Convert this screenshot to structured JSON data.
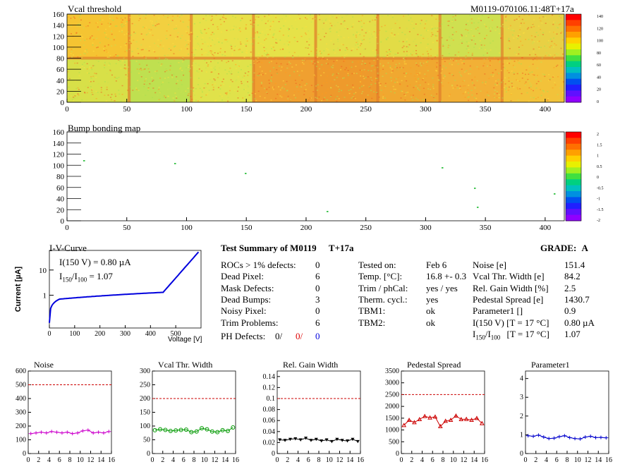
{
  "module_id": "M0119-070106.11:48T+17a",
  "vcal_map": {
    "title": "Vcal threshold",
    "x_ticks": [
      0,
      50,
      100,
      150,
      200,
      250,
      300,
      350,
      400
    ],
    "y_ticks": [
      0,
      20,
      40,
      60,
      80,
      100,
      120,
      140,
      160
    ],
    "color_scale_ticks": [
      0,
      20,
      40,
      60,
      80,
      100,
      120,
      140
    ],
    "xlim": [
      0,
      416
    ],
    "ylim": [
      0,
      160
    ]
  },
  "bump_map": {
    "title": "Bump bonding map",
    "x_ticks": [
      0,
      50,
      100,
      150,
      200,
      250,
      300,
      350,
      400
    ],
    "y_ticks": [
      0,
      20,
      40,
      60,
      80,
      100,
      120,
      140,
      160
    ],
    "color_scale_ticks": [
      "2",
      "1.5",
      "1",
      "0.5",
      "0",
      "-0.5",
      "-1",
      "-1.5",
      "-2"
    ]
  },
  "iv_curve": {
    "title": "I-V-Curve",
    "ylabel": "Current [µA]",
    "xlabel": "Voltage [V]",
    "x_ticks": [
      0,
      100,
      200,
      300,
      400,
      500
    ],
    "y_ticks": [
      "1",
      "10"
    ],
    "annotation_1": "I(150 V) = 0.80 µA",
    "annotation_2_main": "I",
    "annotation_2_sub1": "150",
    "annotation_2_mid": "/I",
    "annotation_2_sub2": "100",
    "annotation_2_value": "=  1.07"
  },
  "summary": {
    "title": "Test Summary of M0119",
    "tag": "T+17a",
    "grade_label": "GRADE:",
    "grade_value": "A",
    "defects": [
      {
        "label": "ROCs > 1% defects:",
        "value": "0"
      },
      {
        "label": "Dead Pixel:",
        "value": "6"
      },
      {
        "label": "Mask Defects:",
        "value": "0"
      },
      {
        "label": "Dead Bumps:",
        "value": "3"
      },
      {
        "label": "Noisy Pixel:",
        "value": "0"
      },
      {
        "label": "Trim Problems:",
        "value": "6"
      }
    ],
    "ph_defects_label": "PH Defects:",
    "ph_defects_values": [
      "0/",
      "0/",
      "0"
    ],
    "tests": [
      {
        "label": "Tested on:",
        "value": "Feb 6"
      },
      {
        "label": "Temp. [°C]:",
        "value": "16.8 +- 0.3"
      },
      {
        "label": "Trim / phCal:",
        "value": "yes / yes"
      },
      {
        "label": "Therm. cycl.:",
        "value": "yes"
      },
      {
        "label": "TBM1:",
        "value": "ok"
      },
      {
        "label": "TBM2:",
        "value": "ok"
      }
    ],
    "params": [
      {
        "label": "Noise [e]",
        "value": "151.4"
      },
      {
        "label": "Vcal Thr. Width [e]",
        "value": "84.2"
      },
      {
        "label": "Rel. Gain Width [%]",
        "value": "2.5"
      },
      {
        "label": "Pedestal Spread [e]",
        "value": "1430.7"
      },
      {
        "label": "Parameter1 []",
        "value": "0.9"
      },
      {
        "label": "I(150 V) [T = 17 °C]",
        "value": "0.80 µA"
      }
    ],
    "ratio_label_main": "I",
    "ratio_label_sub1": "150",
    "ratio_label_mid": "/I",
    "ratio_label_sub2": "100",
    "ratio_label_rest": "[T = 17 °C]",
    "ratio_value": "1.07"
  },
  "chart_data": [
    {
      "type": "line",
      "title": "Noise",
      "color": "#cc00cc",
      "marker": "plus",
      "x": [
        0,
        1,
        2,
        3,
        4,
        5,
        6,
        7,
        8,
        9,
        10,
        11,
        12,
        13,
        14,
        15
      ],
      "y": [
        145,
        150,
        155,
        150,
        160,
        155,
        150,
        155,
        145,
        150,
        165,
        170,
        150,
        155,
        150,
        160
      ],
      "ylim": [
        0,
        600
      ],
      "y_ticks": [
        0,
        100,
        200,
        300,
        400,
        500,
        600
      ],
      "reference": 500,
      "x_ticks": [
        0,
        2,
        4,
        6,
        8,
        10,
        12,
        14,
        16
      ]
    },
    {
      "type": "line",
      "title": "Vcal Thr. Width",
      "color": "#009900",
      "marker": "circle",
      "x": [
        0,
        1,
        2,
        3,
        4,
        5,
        6,
        7,
        8,
        9,
        10,
        11,
        12,
        13,
        14,
        15
      ],
      "y": [
        85,
        88,
        86,
        82,
        84,
        86,
        87,
        78,
        80,
        92,
        88,
        80,
        78,
        85,
        82,
        95
      ],
      "ylim": [
        0,
        300
      ],
      "y_ticks": [
        0,
        50,
        100,
        150,
        200,
        250,
        300
      ],
      "reference": 200,
      "x_ticks": [
        0,
        2,
        4,
        6,
        8,
        10,
        12,
        14,
        16
      ]
    },
    {
      "type": "line",
      "title": "Rel. Gain Width",
      "color": "#000000",
      "marker": "triangle-down",
      "x": [
        0,
        1,
        2,
        3,
        4,
        5,
        6,
        7,
        8,
        9,
        10,
        11,
        12,
        13,
        14,
        15
      ],
      "y": [
        0.025,
        0.024,
        0.026,
        0.027,
        0.025,
        0.028,
        0.024,
        0.026,
        0.023,
        0.025,
        0.022,
        0.026,
        0.024,
        0.023,
        0.026,
        0.022
      ],
      "ylim": [
        0,
        0.15
      ],
      "y_ticks": [
        0,
        0.02,
        0.04,
        0.06,
        0.08,
        0.1,
        0.12,
        0.14
      ],
      "reference": 0.1,
      "x_ticks": [
        0,
        2,
        4,
        6,
        8,
        10,
        12,
        14,
        16
      ]
    },
    {
      "type": "line",
      "title": "Pedestal Spread",
      "color": "#cc0000",
      "marker": "triangle-up",
      "x": [
        0,
        1,
        2,
        3,
        4,
        5,
        6,
        7,
        8,
        9,
        10,
        11,
        12,
        13,
        14,
        15
      ],
      "y": [
        1200,
        1420,
        1320,
        1450,
        1580,
        1520,
        1560,
        1150,
        1380,
        1420,
        1600,
        1450,
        1460,
        1420,
        1500,
        1280
      ],
      "ylim": [
        0,
        3500
      ],
      "y_ticks": [
        0,
        500,
        1000,
        1500,
        2000,
        2500,
        3000,
        3500
      ],
      "reference": 2500,
      "x_ticks": [
        0,
        2,
        4,
        6,
        8,
        10,
        12,
        14,
        16
      ]
    },
    {
      "type": "line",
      "title": "Parameter1",
      "color": "#0000cc",
      "marker": "plus",
      "x": [
        0,
        1,
        2,
        3,
        4,
        5,
        6,
        7,
        8,
        9,
        10,
        11,
        12,
        13,
        14,
        15
      ],
      "y": [
        0.95,
        0.92,
        0.98,
        0.88,
        0.8,
        0.82,
        0.9,
        0.95,
        0.85,
        0.8,
        0.78,
        0.88,
        0.92,
        0.85,
        0.86,
        0.84
      ],
      "ylim": [
        0,
        4.4
      ],
      "y_ticks": [
        0,
        1,
        2,
        3,
        4
      ],
      "reference": null,
      "x_ticks": [
        0,
        2,
        4,
        6,
        8,
        10,
        12,
        14,
        16
      ]
    }
  ]
}
